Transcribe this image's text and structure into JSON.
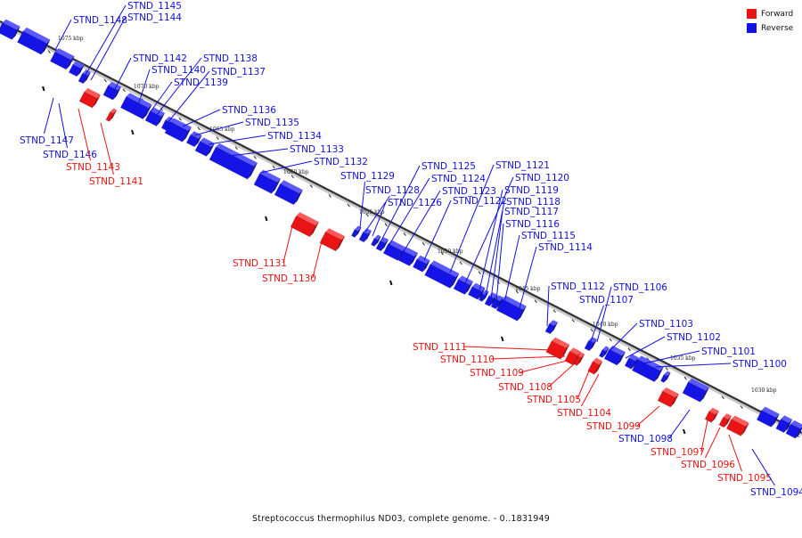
{
  "caption": "Streptococcus thermophilus ND03, complete genome. - 0..1831949",
  "legend": [
    {
      "label": "Forward",
      "color": "#ee1111"
    },
    {
      "label": "Reverse",
      "color": "#1111ee"
    }
  ],
  "scale_labels": [
    "1075 kbp",
    "1070 kbp",
    "1065 kbp",
    "1060 kbp",
    "1055 kbp",
    "1050 kbp",
    "1045 kbp",
    "1040 kbp",
    "1035 kbp",
    "1030 kbp"
  ],
  "genes": [
    {
      "name": "STND_1148",
      "strand": "reverse"
    },
    {
      "name": "STND_1145",
      "strand": "reverse"
    },
    {
      "name": "STND_1144",
      "strand": "reverse"
    },
    {
      "name": "STND_1147",
      "strand": "reverse"
    },
    {
      "name": "STND_1146",
      "strand": "reverse"
    },
    {
      "name": "STND_1143",
      "strand": "forward"
    },
    {
      "name": "STND_1141",
      "strand": "forward"
    },
    {
      "name": "STND_1142",
      "strand": "reverse"
    },
    {
      "name": "STND_1140",
      "strand": "reverse"
    },
    {
      "name": "STND_1138",
      "strand": "reverse"
    },
    {
      "name": "STND_1137",
      "strand": "reverse"
    },
    {
      "name": "STND_1139",
      "strand": "reverse"
    },
    {
      "name": "STND_1136",
      "strand": "reverse"
    },
    {
      "name": "STND_1135",
      "strand": "reverse"
    },
    {
      "name": "STND_1134",
      "strand": "reverse"
    },
    {
      "name": "STND_1133",
      "strand": "reverse"
    },
    {
      "name": "STND_1132",
      "strand": "reverse"
    },
    {
      "name": "STND_1129",
      "strand": "reverse"
    },
    {
      "name": "STND_1128",
      "strand": "reverse"
    },
    {
      "name": "STND_1126",
      "strand": "reverse"
    },
    {
      "name": "STND_1125",
      "strand": "reverse"
    },
    {
      "name": "STND_1124",
      "strand": "reverse"
    },
    {
      "name": "STND_1123",
      "strand": "reverse"
    },
    {
      "name": "STND_1122",
      "strand": "reverse"
    },
    {
      "name": "STND_1121",
      "strand": "reverse"
    },
    {
      "name": "STND_1120",
      "strand": "reverse"
    },
    {
      "name": "STND_1119",
      "strand": "reverse"
    },
    {
      "name": "STND_1118",
      "strand": "reverse"
    },
    {
      "name": "STND_1117",
      "strand": "reverse"
    },
    {
      "name": "STND_1116",
      "strand": "reverse"
    },
    {
      "name": "STND_1115",
      "strand": "reverse"
    },
    {
      "name": "STND_1114",
      "strand": "reverse"
    },
    {
      "name": "STND_1131",
      "strand": "forward"
    },
    {
      "name": "STND_1130",
      "strand": "forward"
    },
    {
      "name": "STND_1112",
      "strand": "reverse"
    },
    {
      "name": "STND_1107",
      "strand": "reverse"
    },
    {
      "name": "STND_1106",
      "strand": "reverse"
    },
    {
      "name": "STND_1103",
      "strand": "reverse"
    },
    {
      "name": "STND_1102",
      "strand": "reverse"
    },
    {
      "name": "STND_1101",
      "strand": "reverse"
    },
    {
      "name": "STND_1100",
      "strand": "reverse"
    },
    {
      "name": "STND_1111",
      "strand": "forward"
    },
    {
      "name": "STND_1110",
      "strand": "forward"
    },
    {
      "name": "STND_1109",
      "strand": "forward"
    },
    {
      "name": "STND_1108",
      "strand": "forward"
    },
    {
      "name": "STND_1105",
      "strand": "forward"
    },
    {
      "name": "STND_1104",
      "strand": "forward"
    },
    {
      "name": "STND_1099",
      "strand": "forward"
    },
    {
      "name": "STND_1098",
      "strand": "reverse"
    },
    {
      "name": "STND_1097",
      "strand": "forward"
    },
    {
      "name": "STND_1096",
      "strand": "forward"
    },
    {
      "name": "STND_1095",
      "strand": "forward"
    },
    {
      "name": "STND_1094",
      "strand": "reverse"
    }
  ]
}
